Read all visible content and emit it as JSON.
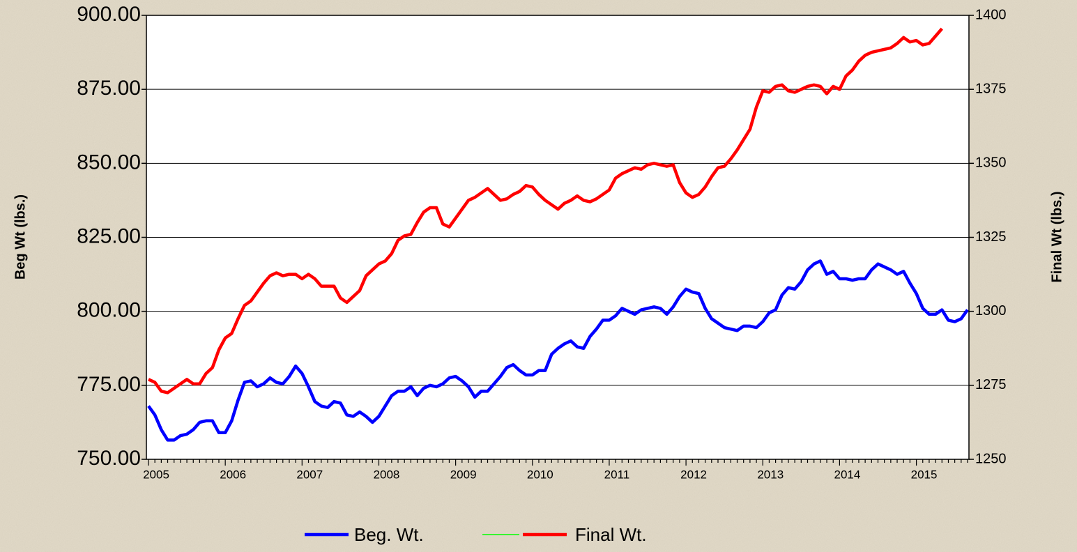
{
  "chart_data": {
    "type": "line",
    "y_label": "Beg Wt (lbs.)",
    "y2_label": "Final Wt (lbs.)",
    "categories": [
      "2005",
      null,
      null,
      null,
      null,
      null,
      null,
      null,
      null,
      null,
      null,
      null,
      "2006",
      null,
      null,
      null,
      null,
      null,
      null,
      null,
      null,
      null,
      null,
      null,
      "2007",
      null,
      null,
      null,
      null,
      null,
      null,
      null,
      null,
      null,
      null,
      null,
      "2008",
      null,
      null,
      null,
      null,
      null,
      null,
      null,
      null,
      null,
      null,
      null,
      "2009",
      null,
      null,
      null,
      null,
      null,
      null,
      null,
      null,
      null,
      null,
      null,
      "2010",
      null,
      null,
      null,
      null,
      null,
      null,
      null,
      null,
      null,
      null,
      null,
      "2011",
      null,
      null,
      null,
      null,
      null,
      null,
      null,
      null,
      null,
      null,
      null,
      "2012",
      null,
      null,
      null,
      null,
      null,
      null,
      null,
      null,
      null,
      null,
      null,
      "2013",
      null,
      null,
      null,
      null,
      null,
      null,
      null,
      null,
      null,
      null,
      null,
      "2014",
      null,
      null,
      null,
      null,
      null,
      null,
      null,
      null,
      null,
      null,
      null,
      "2015",
      null,
      null,
      null,
      null,
      null,
      null,
      null,
      null
    ],
    "series": [
      {
        "name": "Beg. Wt.",
        "color": "#0000ff",
        "axis": "y",
        "values": [
          768,
          765,
          760,
          756.5,
          756.5,
          758,
          758.5,
          760,
          762.5,
          763,
          763,
          759,
          759,
          763,
          770,
          776,
          776.5,
          774.5,
          775.5,
          777.5,
          776,
          775.5,
          778,
          781.5,
          779,
          774.5,
          769.5,
          768,
          767.5,
          769.5,
          769,
          765,
          764.5,
          766,
          764.5,
          762.5,
          764.5,
          768,
          771.5,
          773,
          773,
          774.5,
          771.5,
          774,
          775,
          774.5,
          775.5,
          777.5,
          778,
          776.5,
          774.5,
          771,
          773,
          773,
          775.5,
          778,
          781,
          782,
          780,
          778.5,
          778.5,
          780,
          780,
          785.5,
          787.5,
          789,
          790,
          788,
          787.5,
          791.5,
          794,
          797,
          797,
          798.5,
          801,
          800,
          799,
          800.5,
          801,
          801.5,
          801,
          799,
          801.5,
          805,
          807.5,
          806.5,
          806,
          801,
          797.5,
          796,
          794.5,
          794,
          793.5,
          795,
          795,
          794.5,
          796.5,
          799.5,
          800.5,
          805.5,
          808,
          807.5,
          810,
          814,
          816,
          817,
          812.5,
          813.5,
          811,
          811,
          810.5,
          811,
          811,
          814,
          816,
          815,
          814,
          812.5,
          813.5,
          809.5,
          806,
          801,
          799,
          799,
          800.5,
          797,
          796.5,
          797.5,
          800.5
        ]
      },
      {
        "name": "Final Wt.",
        "color": "#ff0000",
        "axis": "y2",
        "values": [
          1277,
          1276,
          1273,
          1272.5,
          1274,
          1275.5,
          1277,
          1275.5,
          1275.5,
          1279,
          1281,
          1287,
          1291,
          1292.5,
          1297.5,
          1302,
          1303.5,
          1306.5,
          1309.5,
          1312,
          1313,
          1312,
          1312.5,
          1312.5,
          1311,
          1312.5,
          1311,
          1308.5,
          1308.5,
          1308.5,
          1304.5,
          1303,
          1305,
          1307,
          1312,
          1314,
          1316,
          1317,
          1319.5,
          1324,
          1325.5,
          1326,
          1330,
          1333.5,
          1335,
          1335,
          1329.5,
          1328.5,
          1331.5,
          1334.5,
          1337.5,
          1338.5,
          1340,
          1341.5,
          1339.5,
          1337.5,
          1338,
          1339.5,
          1340.5,
          1342.5,
          1342,
          1339.5,
          1337.5,
          1336,
          1334.5,
          1336.5,
          1337.5,
          1339,
          1337.5,
          1337,
          1338,
          1339.5,
          1341,
          1345,
          1346.5,
          1347.5,
          1348.5,
          1348,
          1349.5,
          1350,
          1349.5,
          1349,
          1349.5,
          1343.5,
          1340,
          1338.5,
          1339.5,
          1342,
          1345.5,
          1348.5,
          1349,
          1351.5,
          1354.5,
          1358,
          1361.5,
          1369,
          1374.5,
          1374,
          1376,
          1376.5,
          1374.5,
          1374,
          1375,
          1376,
          1376.5,
          1376,
          1373.5,
          1376,
          1375,
          1379.5,
          1381.5,
          1384.5,
          1386.5,
          1387.5,
          1388,
          1388.5,
          1389,
          1390.5,
          1392.5,
          1391,
          1391.5,
          1390,
          1390.5,
          1393,
          1395.5,
          null,
          null,
          null,
          null
        ]
      }
    ],
    "ylim": [
      750,
      900
    ],
    "yticks": [
      {
        "value": 750,
        "label": "750.00"
      },
      {
        "value": 775,
        "label": "775.00"
      },
      {
        "value": 800,
        "label": "800.00"
      },
      {
        "value": 825,
        "label": "825.00"
      },
      {
        "value": 850,
        "label": "850.00"
      },
      {
        "value": 875,
        "label": "875.00"
      },
      {
        "value": 900,
        "label": "900.00"
      }
    ],
    "y2lim": [
      1250,
      1400
    ],
    "y2ticks": [
      1250,
      1275,
      1300,
      1325,
      1350,
      1375,
      1400
    ],
    "grid": true,
    "legend": "bottom"
  }
}
